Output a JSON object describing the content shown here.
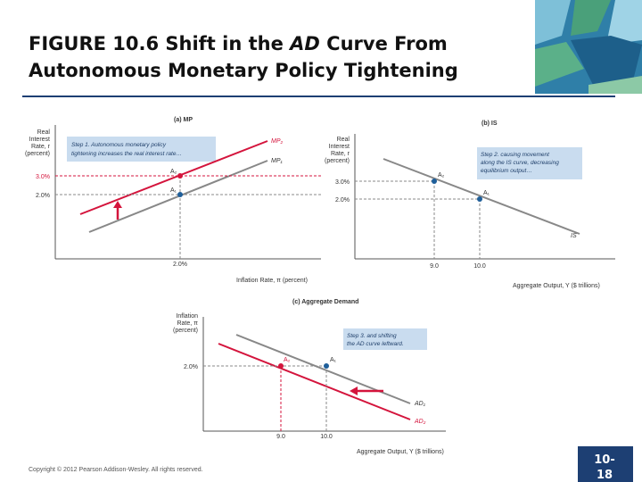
{
  "header": {
    "title_line1_start": "FIGURE 10.6  Shift in the ",
    "title_line1_italic": "AD",
    "title_line1_end": " Curve From",
    "title_line2": "Autonomous Monetary Policy Tightening"
  },
  "panels": {
    "a": {
      "title": "(a) MP",
      "y_label": [
        "Real",
        "Interest",
        "Rate, r",
        "(percent)"
      ],
      "yticks": [
        "3.0%",
        "2.0%"
      ],
      "xtick": "2.0%",
      "x_label": "Inflation Rate, π (percent)",
      "curves": [
        "MP₂",
        "MP₁"
      ],
      "points": [
        "A₂",
        "A₁"
      ],
      "note": [
        "Step 1. Autonomous monetary policy",
        "tightening increases the real interest rate…"
      ]
    },
    "b": {
      "title": "(b) IS",
      "y_label": [
        "Real",
        "Interest",
        "Rate, r",
        "(percent)"
      ],
      "yticks": [
        "3.0%",
        "2.0%"
      ],
      "xticks": [
        "9.0",
        "10.0"
      ],
      "x_label": "Aggregate Output, Y ($ trillions)",
      "curve": "IS",
      "points": [
        "A₂",
        "A₁"
      ],
      "note": [
        "Step 2. causing movement",
        "along the IS curve, decreasing",
        "equilibrium output…"
      ]
    },
    "c": {
      "title": "(c) Aggregate Demand",
      "y_label": [
        "Inflation",
        "Rate, π",
        "(percent)"
      ],
      "ytick": "2.0%",
      "xticks": [
        "9.0",
        "10.0"
      ],
      "x_label": "Aggregate Output, Y ($ trillions)",
      "curves": [
        "AD₁",
        "AD₂"
      ],
      "points": [
        "A₂",
        "A₁"
      ],
      "note": [
        "Step 3. and shifting",
        "the AD curve leftward."
      ]
    }
  },
  "footer": {
    "copyright": "Copyright © 2012 Pearson Addison-Wesley. All rights reserved.",
    "page": [
      "10-",
      "18"
    ]
  }
}
